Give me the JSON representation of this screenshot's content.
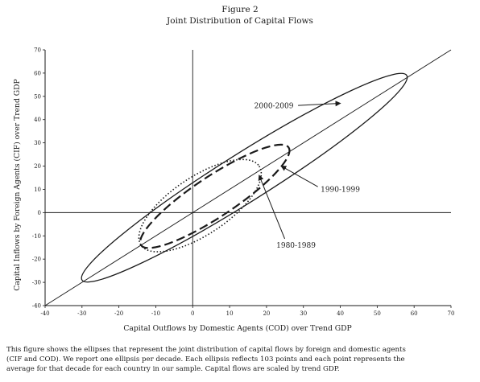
{
  "figure": {
    "number": "Figure 2",
    "title": "Joint Distribution of Capital Flows"
  },
  "caption": {
    "line1": "This figure shows the ellipses that represent the joint distribution of capital flows by foreign and domestic agents",
    "line2": "(CIF and COD). We report one ellipsis per decade. Each ellipsis reflects 103 points and each point represents the",
    "line3": "average for that decade for each country in our sample. Capital flows are scaled by trend GDP."
  },
  "chart_data": {
    "type": "scatter",
    "title": "Joint Distribution of Capital Flows",
    "xlabel": "Capital Outflows by Domestic Agents (COD) over Trend GDP",
    "ylabel": "Capital Inflows by Foreign Agents (CIF) over Trend GDP",
    "xlim": [
      -40,
      70
    ],
    "ylim": [
      -40,
      70
    ],
    "xticks": [
      -40,
      -30,
      -20,
      -10,
      0,
      10,
      20,
      30,
      40,
      50,
      60,
      70
    ],
    "yticks": [
      -40,
      -30,
      -20,
      -10,
      0,
      10,
      20,
      30,
      40,
      50,
      60,
      70
    ],
    "grid": false,
    "reference_lines": [
      "x=0",
      "y=0",
      "y=x"
    ],
    "series": [
      {
        "name": "2000-2009",
        "style": "solid",
        "points": [
          [
            58,
            59
          ],
          [
            -30,
            -29
          ]
        ],
        "half_width": 6.5
      },
      {
        "name": "1990-1999",
        "style": "dashed",
        "points": [
          [
            26,
            28
          ],
          [
            -14,
            -14
          ]
        ],
        "half_width": 5.5
      },
      {
        "name": "1980-1989",
        "style": "dotted",
        "points": [
          [
            18,
            20
          ],
          [
            -14,
            -14
          ]
        ],
        "half_width": 7.8
      }
    ],
    "annotations": [
      {
        "text": "2000-2009",
        "label_at": [
          22,
          46
        ],
        "arrow_to": [
          40,
          47
        ]
      },
      {
        "text": "1990-1999",
        "label_at": [
          40,
          10
        ],
        "arrow_to": [
          24,
          20
        ]
      },
      {
        "text": "1980-1989",
        "label_at": [
          28,
          -14
        ],
        "arrow_to": [
          18,
          16
        ]
      }
    ]
  }
}
